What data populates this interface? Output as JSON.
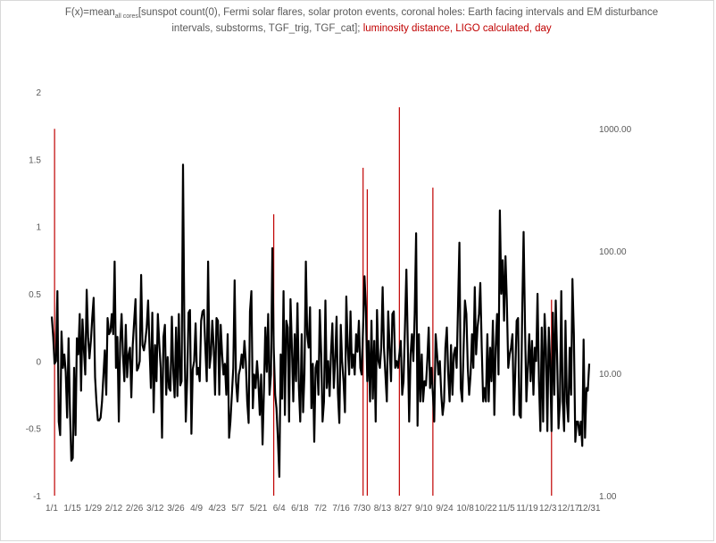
{
  "chart_data": {
    "type": "line",
    "title": {
      "prefix": "F(x)=mean",
      "subscript": "all cores",
      "main": "[sunspot count(0), Fermi  solar flares, solar proton events, coronal holes: Earth facing intervals and EM disturbance intervals,  substorms, TGF_trig, TGF_cat]; ",
      "highlight": "luminosity distance, LIGO calculated, day"
    },
    "xlabel": "",
    "ylabel": "",
    "x_tick_labels": [
      "1/1",
      "1/15",
      "1/29",
      "2/12",
      "2/26",
      "3/12",
      "3/26",
      "4/9",
      "4/23",
      "5/7",
      "5/21",
      "6/4",
      "6/18",
      "7/2",
      "7/16",
      "7/30",
      "8/13",
      "8/27",
      "9/10",
      "9/24",
      "10/8",
      "10/22",
      "11/5",
      "11/19",
      "12/3",
      "12/17",
      "12/31"
    ],
    "y_left": {
      "ylim": [
        -1,
        2
      ],
      "ticks": [
        "-1",
        "-0.5",
        "0",
        "0.5",
        "1",
        "1.5",
        "2"
      ]
    },
    "y_right": {
      "scale": "log",
      "ylim": [
        1,
        2000
      ],
      "ticks": [
        "1.00",
        "10.00",
        "100.00",
        "1000.00"
      ]
    },
    "grid": false,
    "series": [
      {
        "color": "#000000",
        "axis": "left",
        "values": [
          0.33,
          0.18,
          -0.02,
          0.0,
          0.52,
          -0.45,
          -0.55,
          0.22,
          -0.05,
          0.05,
          -0.08,
          -0.42,
          0.17,
          -0.35,
          -0.74,
          -0.72,
          -0.05,
          -0.55,
          0.17,
          0.05,
          0.35,
          -0.22,
          0.31,
          0.08,
          -0.1,
          0.53,
          0.18,
          0.02,
          0.15,
          0.32,
          0.47,
          -0.12,
          -0.3,
          -0.44,
          -0.44,
          -0.42,
          -0.3,
          -0.1,
          0.08,
          -0.25,
          0.32,
          0.2,
          0.22,
          0.35,
          0.2,
          0.74,
          -0.05,
          0.18,
          -0.45,
          0.13,
          0.35,
          0.05,
          -0.15,
          0.27,
          -0.12,
          0.05,
          0.1,
          -0.27,
          0.12,
          0.3,
          0.46,
          -0.07,
          -0.05,
          0.0,
          0.64,
          0.12,
          0.08,
          0.15,
          0.25,
          0.45,
          0.1,
          -0.2,
          0.36,
          -0.38,
          0.12,
          -0.15,
          0.35,
          0.13,
          -0.05,
          -0.57,
          0.18,
          0.27,
          -0.25,
          0.03,
          -0.2,
          -0.22,
          0.33,
          -0.06,
          -0.27,
          0.25,
          -0.26,
          0.35,
          -0.18,
          -0.15,
          1.46,
          0.25,
          -0.45,
          -0.13,
          0.36,
          0.38,
          -0.54,
          -0.06,
          0.0,
          0.28,
          -0.1,
          -0.05,
          -0.15,
          0.3,
          0.37,
          0.38,
          0.1,
          -0.15,
          0.74,
          -0.05,
          0.05,
          0.3,
          0.1,
          -0.25,
          0.32,
          0.3,
          -0.25,
          0.27,
          0.05,
          -0.1,
          -0.02,
          -0.25,
          0.2,
          -0.57,
          -0.45,
          -0.25,
          -0.05,
          0.6,
          -0.15,
          -0.3,
          -0.1,
          -0.05,
          0.05,
          -0.05,
          0.15,
          0.0,
          -0.3,
          -0.46,
          0.37,
          0.52,
          -0.35,
          -0.1,
          -0.2,
          0.0,
          -0.15,
          -0.4,
          -0.1,
          -0.62,
          -0.2,
          0.25,
          -0.08,
          0.35,
          -0.25,
          -0.1,
          0.84,
          0.1,
          -0.25,
          -0.35,
          -0.58,
          -0.86,
          0.05,
          -0.28,
          0.52,
          -0.4,
          0.3,
          0.25,
          -0.45,
          0.46,
          0.12,
          -0.3,
          0.2,
          -0.15,
          0.43,
          -0.2,
          -0.45,
          0.2,
          -0.38,
          -0.1,
          0.74,
          0.2,
          0.1,
          0.4,
          -0.35,
          -0.02,
          -0.6,
          -0.05,
          0.0,
          -0.25,
          0.38,
          0.05,
          -0.45,
          -0.3,
          0.45,
          -0.2,
          0.0,
          -0.26,
          0.05,
          0.28,
          -0.2,
          0.0,
          0.33,
          -0.24,
          -0.46,
          0.27,
          0.0,
          -0.15,
          -0.38,
          0.48,
          0.1,
          -0.1,
          0.37,
          -0.05,
          0.05,
          -0.1,
          0.2,
          0.07,
          0.3,
          -0.05,
          -0.1,
          0.25,
          0.63,
          0.4,
          -0.15,
          0.15,
          -0.3,
          0.3,
          -0.28,
          0.15,
          -0.45,
          0.38,
          0.0,
          -0.05,
          0.1,
          0.55,
          0.1,
          -0.1,
          -0.3,
          0.37,
          0.1,
          -0.15,
          0.35,
          0.37,
          -0.05,
          0.0,
          -0.05,
          0.05,
          0.15,
          -0.25,
          -0.15,
          0.25,
          0.68,
          0.15,
          -0.45,
          0.05,
          0.2,
          0.0,
          0.35,
          0.95,
          -0.48,
          0.2,
          -0.3,
          0.05,
          -0.3,
          -0.15,
          -0.18,
          0.0,
          0.25,
          -0.2,
          -0.05,
          -0.25,
          -0.45,
          0.2,
          0.05,
          -0.1,
          0.0,
          -0.25,
          -0.4,
          -0.3,
          0.1,
          0.25,
          -0.1,
          -0.3,
          0.12,
          -0.25,
          0.05,
          0.1,
          -0.05,
          0.4,
          0.88,
          -0.2,
          -0.3,
          0.1,
          0.45,
          0.35,
          -0.05,
          -0.25,
          -0.1,
          0.2,
          -0.05,
          0.55,
          0.05,
          0.25,
          0.35,
          0.58,
          0.1,
          -0.3,
          -0.2,
          -0.3,
          0.2,
          -0.3,
          0.1,
          -0.15,
          0.3,
          -0.4,
          0.1,
          0.35,
          -0.1,
          1.12,
          0.5,
          0.75,
          0.3,
          0.78,
          0.45,
          -0.05,
          0.05,
          0.1,
          0.2,
          -0.4,
          -0.1,
          0.3,
          0.32,
          -0.4,
          -0.42,
          0.35,
          0.96,
          0.25,
          -0.3,
          -0.05,
          0.2,
          -0.15,
          0.15,
          -0.25,
          0.1,
          0.0,
          0.5,
          -0.15,
          -0.52,
          0.25,
          -0.45,
          0.35,
          0.1,
          -0.52,
          0.25,
          0.0,
          -0.52,
          0.36,
          -0.25,
          0.45,
          0.05,
          -0.5,
          -0.3,
          0.52,
          -0.3,
          -0.52,
          0.3,
          -0.3,
          -0.45,
          0.1,
          -0.25,
          0.61,
          0.2,
          -0.6,
          -0.45,
          -0.45,
          -0.55,
          -0.45,
          -0.63,
          0.16,
          -0.57,
          -0.2,
          -0.22,
          -0.02
        ]
      },
      {
        "color": "#c00000",
        "axis": "right",
        "kind": "vertical-lines",
        "events": [
          {
            "x": 2,
            "value": 1000
          },
          {
            "x": 159,
            "value": 200
          },
          {
            "x": 223,
            "value": 480
          },
          {
            "x": 226,
            "value": 320
          },
          {
            "x": 249,
            "value": 1500
          },
          {
            "x": 273,
            "value": 330
          },
          {
            "x": 358,
            "value": 40
          }
        ]
      }
    ]
  }
}
